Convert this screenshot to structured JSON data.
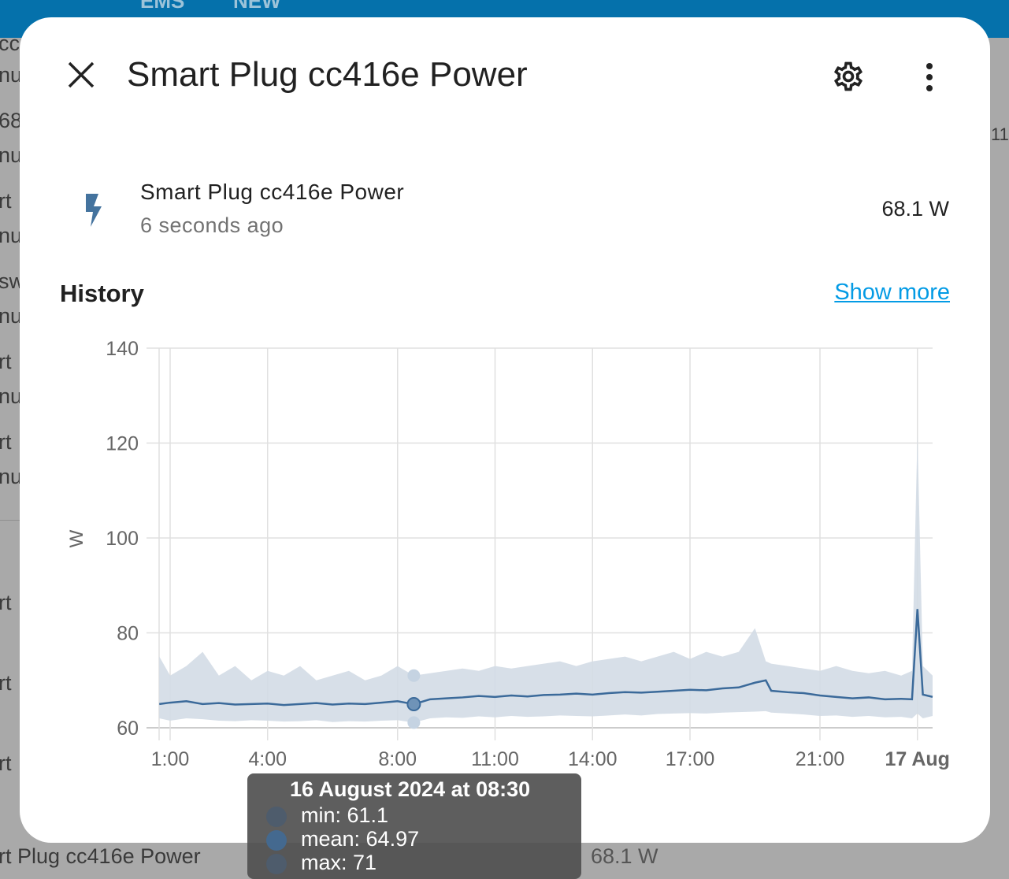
{
  "background": {
    "topbar_items": [
      "EMS",
      "NEW"
    ],
    "fragments": [
      "ccu",
      "nu",
      "68",
      "nu",
      "rt",
      "nu",
      "sw",
      "nu",
      "rt",
      "nu",
      "rt",
      "nu",
      "rt",
      "rt",
      "rt",
      "rt Plug cc416e Power",
      "68.1 W",
      "11"
    ]
  },
  "dialog": {
    "title": "Smart Plug cc416e Power",
    "close_icon": "close-icon",
    "settings_icon": "gear-icon",
    "menu_icon": "more-vertical-icon",
    "entity": {
      "icon": "flash-icon",
      "name": "Smart Plug cc416e Power",
      "last_changed": "6 seconds ago",
      "state": "68.1 W"
    },
    "history": {
      "heading": "History",
      "show_more": "Show more"
    }
  },
  "colors": {
    "line": "#3b6a9a",
    "band": "#d3dce6",
    "link": "#039be5"
  },
  "chart_data": {
    "type": "line",
    "ylabel": "W",
    "ylim": [
      60,
      140
    ],
    "yticks": [
      "140",
      "120",
      "100",
      "80",
      "60"
    ],
    "xticks": [
      {
        "label": "1:00",
        "t": "01:00"
      },
      {
        "label": "4:00",
        "t": "04:00"
      },
      {
        "label": "8:00",
        "t": "08:00"
      },
      {
        "label": "11:00",
        "t": "11:00"
      },
      {
        "label": "14:00",
        "t": "14:00"
      },
      {
        "label": "17:00",
        "t": "17:00"
      },
      {
        "label": "21:00",
        "t": "21:00"
      },
      {
        "label": "17 Aug",
        "t": "24:00",
        "bold": true
      }
    ],
    "xrange": [
      "00:40",
      "24:30"
    ],
    "grid": true,
    "series": {
      "t": [
        "00:40",
        "01:00",
        "01:30",
        "02:00",
        "02:30",
        "03:00",
        "03:30",
        "04:00",
        "04:30",
        "05:00",
        "05:30",
        "06:00",
        "06:30",
        "07:00",
        "07:30",
        "08:00",
        "08:30",
        "09:00",
        "09:30",
        "10:00",
        "10:30",
        "11:00",
        "11:30",
        "12:00",
        "12:30",
        "13:00",
        "13:30",
        "14:00",
        "14:30",
        "15:00",
        "15:30",
        "16:00",
        "16:30",
        "17:00",
        "17:30",
        "18:00",
        "18:30",
        "19:00",
        "19:20",
        "19:30",
        "20:00",
        "20:30",
        "21:00",
        "21:30",
        "22:00",
        "22:30",
        "23:00",
        "23:30",
        "23:50",
        "24:00",
        "24:10",
        "24:30"
      ],
      "mean": [
        65,
        65.3,
        65.6,
        65,
        65.2,
        64.9,
        65,
        65.1,
        64.8,
        65,
        65.2,
        64.9,
        65.1,
        65,
        65.3,
        65.6,
        64.97,
        66,
        66.2,
        66.4,
        66.7,
        66.5,
        66.8,
        66.6,
        66.9,
        67,
        67.2,
        67,
        67.3,
        67.5,
        67.4,
        67.6,
        67.8,
        68,
        67.9,
        68.3,
        68.5,
        69.5,
        70,
        67.8,
        67.5,
        67.3,
        66.8,
        66.5,
        66.2,
        66.4,
        66,
        66.1,
        66,
        85,
        67,
        66.5
      ],
      "min": [
        62,
        61.5,
        62,
        61.8,
        61.5,
        61.4,
        61.6,
        61.5,
        61.3,
        61.4,
        61.6,
        61.2,
        61.4,
        61.3,
        61.5,
        61.6,
        61.1,
        62,
        62.2,
        62.1,
        62.4,
        62.2,
        62.5,
        62.3,
        62.4,
        62.6,
        62.5,
        62.4,
        62.6,
        62.8,
        62.6,
        62.9,
        63,
        63.1,
        63,
        63.2,
        63.3,
        63.4,
        63.5,
        63.2,
        63,
        62.8,
        62.5,
        62.6,
        62.3,
        62.5,
        62.2,
        62.3,
        62,
        63,
        62,
        62.5
      ],
      "max": [
        75,
        71,
        73,
        76,
        71,
        73,
        70,
        72,
        71,
        73,
        70,
        71,
        72,
        70,
        71,
        73,
        71,
        71.5,
        72,
        72.5,
        72,
        73,
        72.5,
        73,
        73.5,
        74,
        73,
        74,
        74.5,
        75,
        74,
        75,
        76,
        74.5,
        76,
        75,
        76,
        81,
        74,
        73.5,
        73,
        72.5,
        72,
        73,
        72,
        71.5,
        72,
        71,
        72,
        122,
        73,
        71
      ]
    },
    "tooltip": {
      "title": "16 August 2024 at 08:30",
      "rows": [
        {
          "label": "min: 61.1"
        },
        {
          "label": "mean: 64.97"
        },
        {
          "label": "max: 71"
        }
      ]
    }
  }
}
